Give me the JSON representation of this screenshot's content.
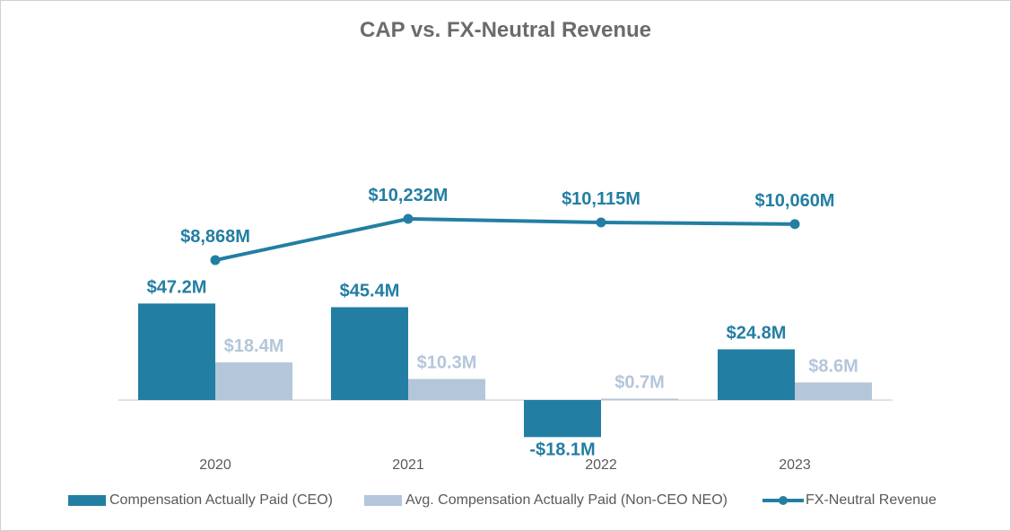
{
  "chart_data": {
    "type": "bar+line",
    "title": "CAP vs. FX-Neutral Revenue",
    "categories": [
      "2020",
      "2021",
      "2022",
      "2023"
    ],
    "series": [
      {
        "name": "Compensation Actually Paid (CEO)",
        "type": "bar",
        "color": "#237ea3",
        "values": [
          47.2,
          45.4,
          -18.1,
          24.8
        ],
        "labels": [
          "$47.2M",
          "$45.4M",
          "-$18.1M",
          "$24.8M"
        ]
      },
      {
        "name": "Avg. Compensation Actually Paid (Non-CEO NEO)",
        "type": "bar",
        "color": "#b4c6da",
        "values": [
          18.4,
          10.3,
          0.7,
          8.6
        ],
        "labels": [
          "$18.4M",
          "$10.3M",
          "$0.7M",
          "$8.6M"
        ]
      },
      {
        "name": "FX-Neutral Revenue",
        "type": "line",
        "color": "#237ea3",
        "values": [
          8868,
          10232,
          10115,
          10060
        ],
        "labels": [
          "$8,868M",
          "$10,232M",
          "$10,115M",
          "$10,060M"
        ]
      }
    ],
    "legend": "bottom",
    "grid": false
  }
}
